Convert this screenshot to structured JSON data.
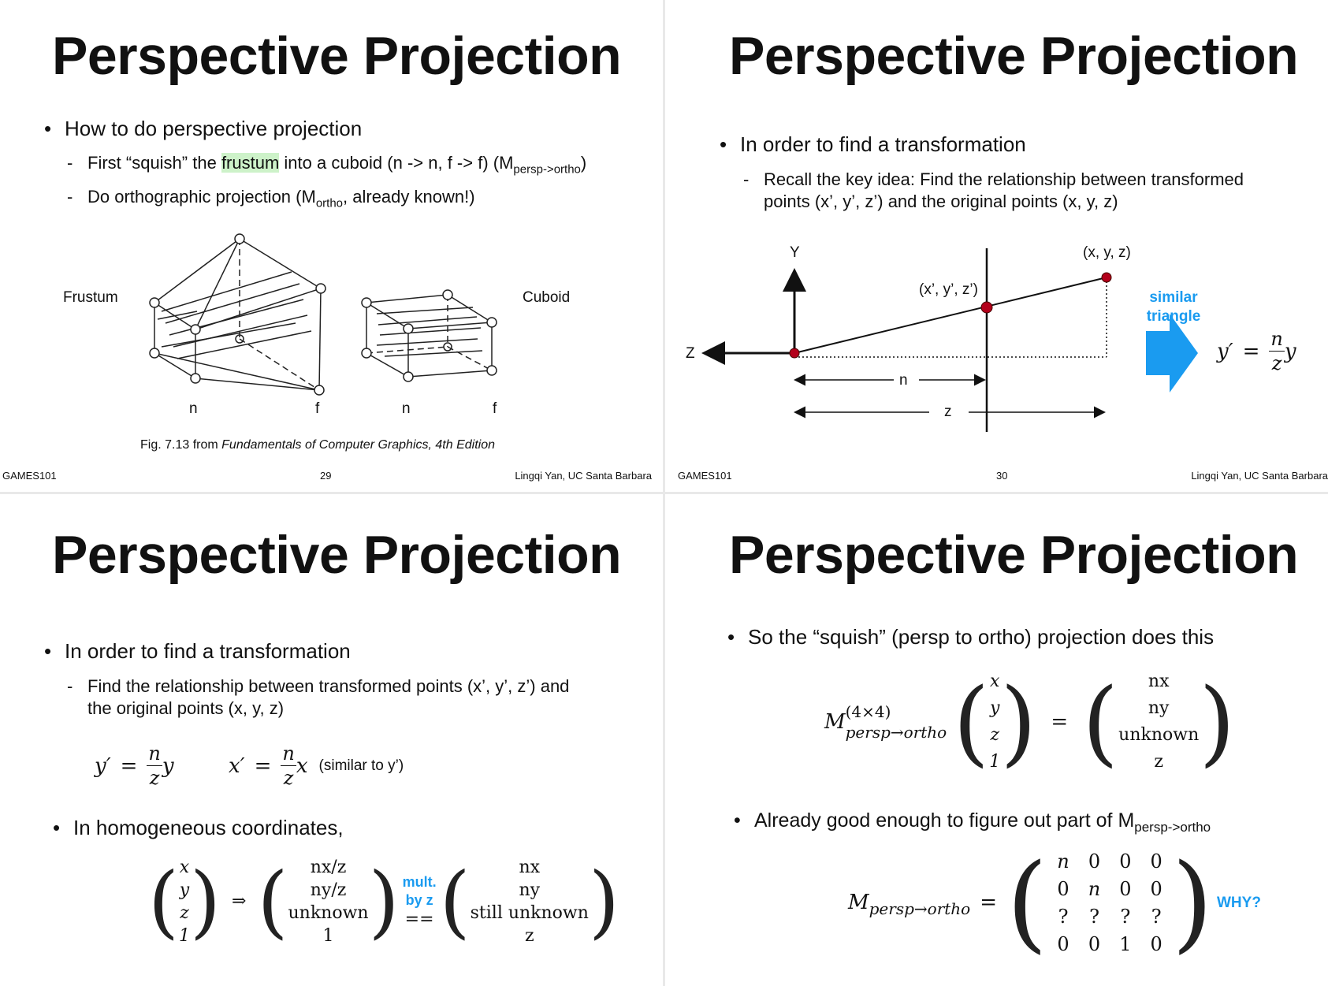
{
  "slides": [
    {
      "title": "Perspective Projection",
      "bullet": "How to do perspective projection",
      "sub1_pre": "First “squish” the ",
      "sub1_hl": "frustum",
      "sub1_post": " into a cuboid (n -> n, f -> f) (M",
      "sub1_sub": "persp->ortho",
      "sub1_end": ")",
      "sub2_pre": "Do orthographic projection (M",
      "sub2_sub": "ortho",
      "sub2_post": ", already known!)",
      "frustum_label": "Frustum",
      "cuboid_label": "Cuboid",
      "n1": "n",
      "f1": "f",
      "n2": "n",
      "f2": "f",
      "caption_pre": "Fig. 7.13 from ",
      "caption_italic": "Fundamentals of Computer Graphics, 4th Edition",
      "footer_left": "GAMES101",
      "page": "29",
      "footer_right": "Lingqi Yan, UC Santa Barbara"
    },
    {
      "title": "Perspective Projection",
      "bullet": "In order to find a transformation",
      "sub": "Recall the key idea: Find the relationship between transformed points (x’, y’, z’) and the original points (x, y, z)",
      "y_axis": "Y",
      "z_axis": "Z",
      "pt_orig": "(x, y, z)",
      "pt_trans": "(x’, y’, z’)",
      "n_label": "n",
      "z_label": "z",
      "similar": "similar",
      "triangle": "triangle",
      "eq_lhs": "y′",
      "eq_eq": "=",
      "eq_num": "n",
      "eq_den": "z",
      "eq_var": "y",
      "footer_left": "GAMES101",
      "page": "30",
      "footer_right": "Lingqi Yan, UC Santa Barbara"
    },
    {
      "title": "Perspective Projection",
      "bullet1": "In order to find a transformation",
      "sub": "Find the relationship between transformed points (x’, y’, z’) and the original points (x, y, z)",
      "eq1_lhs": "y′",
      "eq1_num": "n",
      "eq1_den": "z",
      "eq1_var": "y",
      "eq2_lhs": "x′",
      "eq2_num": "n",
      "eq2_den": "z",
      "eq2_var": "x",
      "eq_eq": "=",
      "similar_note": "(similar to y’)",
      "bullet2": "In homogeneous coordinates,",
      "vec1": [
        "x",
        "y",
        "z",
        "1"
      ],
      "implies": "⇒",
      "vec2": [
        "nx/z",
        "ny/z",
        "unknown",
        "1"
      ],
      "mult1": "mult.",
      "mult2": "by z",
      "eqeq": "==",
      "vec3": [
        "nx",
        "ny",
        "still unknown",
        "z"
      ]
    },
    {
      "title": "Perspective Projection",
      "bullet1": "So the “squish” (persp to ortho) projection does this",
      "m_label": "M",
      "m_sup": "(4×4)",
      "m_sub": "persp→ortho",
      "vec_l": [
        "x",
        "y",
        "z",
        "1"
      ],
      "eq": "=",
      "vec_r": [
        "nx",
        "ny",
        "unknown",
        "z"
      ],
      "bullet2_pre": "Already good enough to figure out part of M",
      "bullet2_sub": "persp->ortho",
      "m2_label": "M",
      "m2_sub": "persp→ortho",
      "eq2": "=",
      "matrix": [
        [
          "n",
          "0",
          "0",
          "0"
        ],
        [
          "0",
          "n",
          "0",
          "0"
        ],
        [
          "?",
          "?",
          "?",
          "?"
        ],
        [
          "0",
          "0",
          "1",
          "0"
        ]
      ],
      "why": "WHY?"
    }
  ]
}
